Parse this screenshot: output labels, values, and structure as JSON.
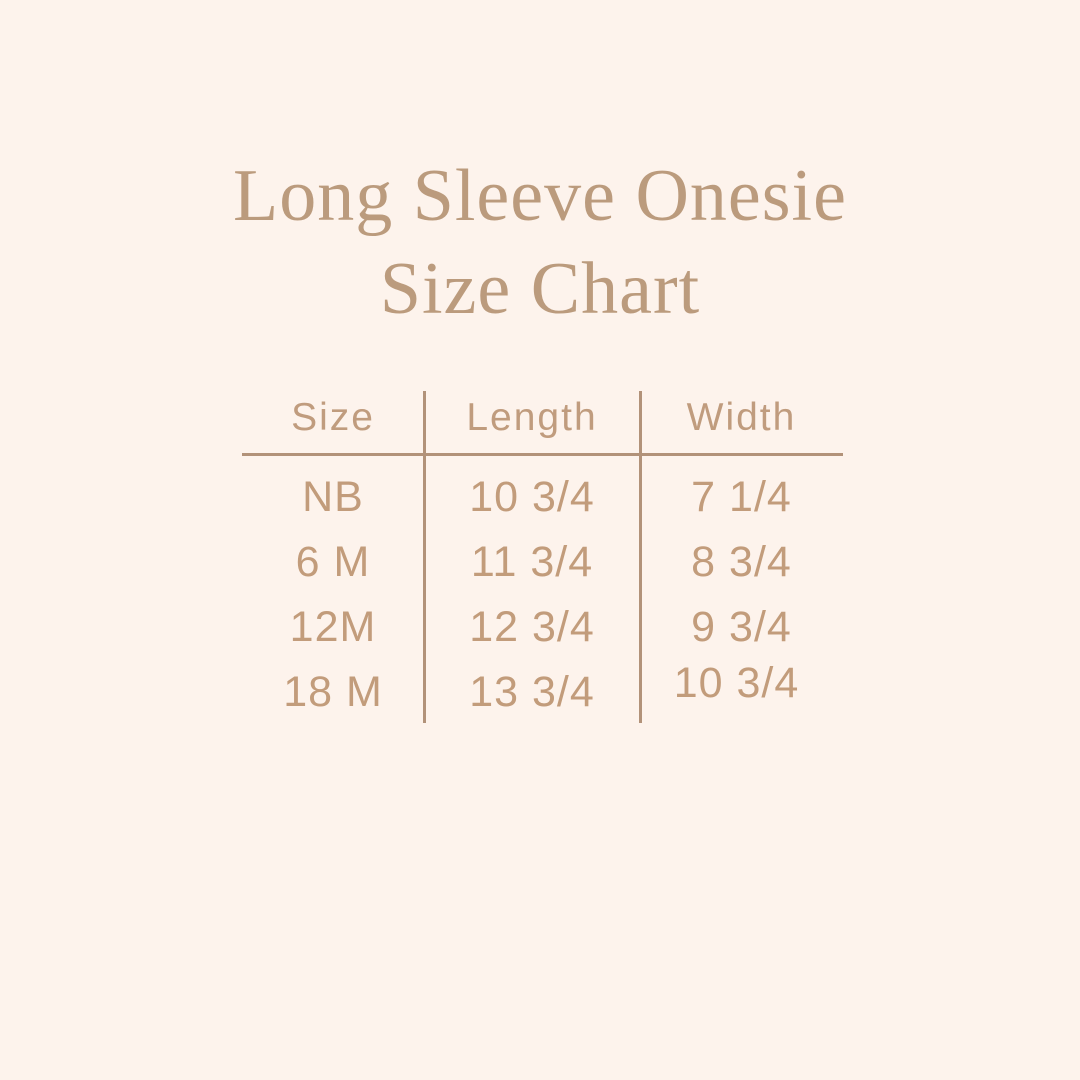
{
  "page": {
    "background_color": "#fdf3ec",
    "title_color": "#bb9b7d",
    "table_text_color": "#c29c7b",
    "divider_color": "#b29279",
    "title_line1": "Long Sleeve Onesie",
    "title_line2": "Size Chart"
  },
  "chart_data": {
    "type": "table",
    "title": "Long Sleeve Onesie Size Chart",
    "columns": [
      "Size",
      "Length",
      "Width"
    ],
    "rows": [
      [
        "NB",
        "10 3/4",
        "7 1/4"
      ],
      [
        "6 M",
        "11 3/4",
        "8 3/4"
      ],
      [
        "12M",
        "12 3/4",
        "9 3/4"
      ],
      [
        "18 M",
        "13 3/4",
        "10 3/4"
      ]
    ]
  }
}
